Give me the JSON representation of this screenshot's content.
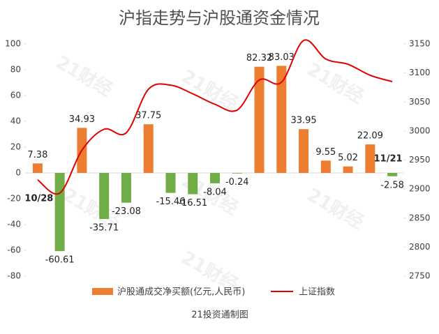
{
  "chart_data": {
    "type": "bar+line",
    "title": "沪指走势与沪股通资金情况",
    "footer": "21投资通制图",
    "watermark": "21财经",
    "categories": [
      "10/28",
      null,
      null,
      null,
      null,
      null,
      null,
      null,
      null,
      null,
      null,
      null,
      null,
      null,
      null,
      null,
      "11/21"
    ],
    "series": [
      {
        "name": "沪股通成交净买额(亿元,人民币)",
        "type": "bar",
        "color": "#ed7d31",
        "negative_color": "#70ad47",
        "values": [
          7.38,
          -60.61,
          34.93,
          -35.71,
          -23.08,
          37.75,
          -15.46,
          -16.51,
          -8.04,
          -0.24,
          82.32,
          83.03,
          33.95,
          9.55,
          5.02,
          22.09,
          -2.58
        ]
      },
      {
        "name": "上证指数",
        "type": "line",
        "color": "#e00000",
        "axis": "y2",
        "values": [
          2916,
          2893,
          2967,
          3003,
          2997,
          3072,
          3079,
          3064,
          3046,
          3036,
          3088,
          3084,
          3156,
          3124,
          3115,
          3096,
          3085
        ]
      }
    ],
    "ylim": [
      -80,
      100
    ],
    "yticks": [
      -80,
      -60,
      -40,
      -20,
      0,
      20,
      40,
      60,
      80,
      100
    ],
    "y2lim": [
      2750,
      3150
    ],
    "y2ticks": [
      2750,
      2800,
      2850,
      2900,
      2950,
      3000,
      3050,
      3100,
      3150
    ],
    "grid": false
  }
}
